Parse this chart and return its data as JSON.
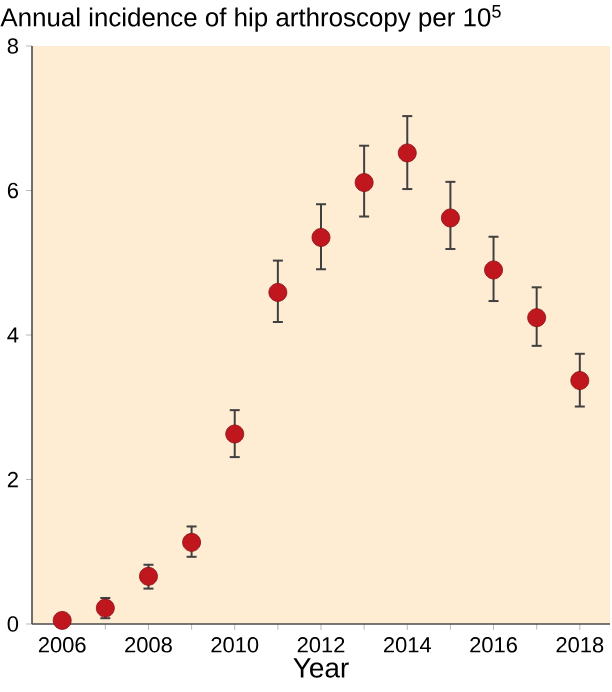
{
  "chart_data": {
    "type": "scatter",
    "title": "Annual incidence of hip arthroscopy per 10$^{5}$",
    "xlabel": "Year",
    "x": [
      2006,
      2007,
      2008,
      2009,
      2010,
      2011,
      2012,
      2013,
      2014,
      2015,
      2016,
      2017,
      2018
    ],
    "values": [
      0.05,
      0.22,
      0.66,
      1.13,
      2.63,
      4.59,
      5.35,
      6.11,
      6.52,
      5.62,
      4.9,
      4.24,
      3.37
    ],
    "errors": [
      null,
      [
        0.08,
        0.36
      ],
      [
        0.49,
        0.82
      ],
      [
        0.93,
        1.35
      ],
      [
        2.31,
        2.96
      ],
      [
        4.18,
        5.03
      ],
      [
        4.91,
        5.81
      ],
      [
        5.64,
        6.62
      ],
      [
        6.02,
        7.03
      ],
      [
        5.19,
        6.12
      ],
      [
        4.47,
        5.36
      ],
      [
        3.85,
        4.66
      ],
      [
        3.01,
        3.74
      ]
    ],
    "color": "#c0161e",
    "marker": "circle",
    "xlim": [
      2005.3,
      2018.7
    ],
    "xticks": [
      2006,
      2008,
      2010,
      2012,
      2014,
      2016,
      2018
    ],
    "ylim": [
      0,
      8
    ],
    "yticks": [
      0,
      2,
      4,
      6,
      8
    ],
    "grid": false
  }
}
